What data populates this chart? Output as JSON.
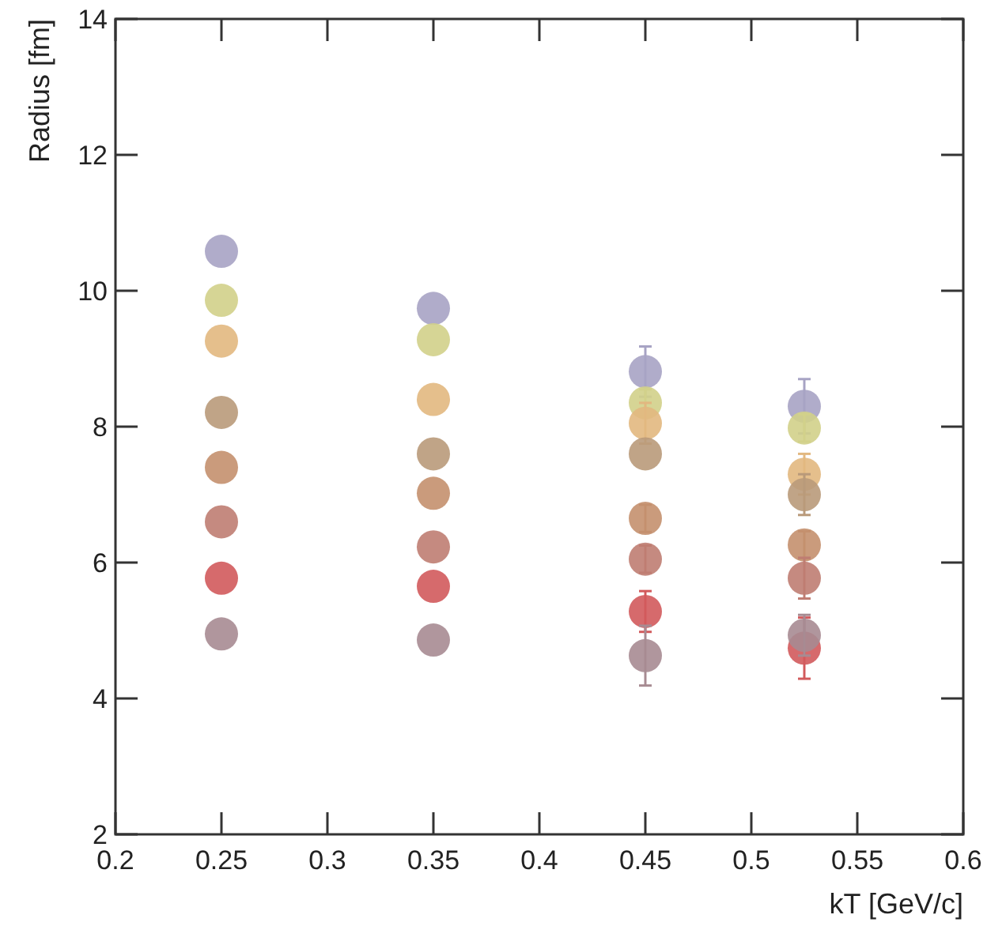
{
  "chart_data": {
    "type": "scatter",
    "xlabel": "kT [GeV/c]",
    "ylabel": "Radius [fm]",
    "x": [
      0.25,
      0.35,
      0.45,
      0.525
    ],
    "xlim": [
      0.2,
      0.6
    ],
    "xticks": [
      0.2,
      0.25,
      0.3,
      0.35,
      0.4,
      0.45,
      0.5,
      0.55,
      0.6
    ],
    "ylim": [
      2,
      14
    ],
    "yticks": [
      2,
      4,
      6,
      8,
      10,
      12,
      14
    ],
    "marker": "circle",
    "series": [
      {
        "color": "#a7a3c4",
        "values": [
          10.58,
          9.74,
          8.81,
          8.3
        ],
        "errors": [
          null,
          null,
          0.37,
          0.4
        ]
      },
      {
        "color": "#d2d08a",
        "values": [
          9.86,
          9.28,
          8.35,
          7.98
        ],
        "errors": [
          null,
          null,
          0.2,
          0.2
        ]
      },
      {
        "color": "#e2b880",
        "values": [
          9.26,
          8.4,
          8.05,
          7.3
        ],
        "errors": [
          null,
          null,
          0.3,
          0.3
        ]
      },
      {
        "color": "#b99a7a",
        "values": [
          8.21,
          7.6,
          7.6,
          7.0
        ],
        "errors": [
          null,
          null,
          null,
          0.3
        ]
      },
      {
        "color": "#c4906e",
        "values": [
          7.4,
          7.02,
          6.65,
          6.26
        ],
        "errors": [
          null,
          null,
          0.2,
          0.2
        ]
      },
      {
        "color": "#bf7d72",
        "values": [
          6.6,
          6.23,
          6.05,
          5.77
        ],
        "errors": [
          null,
          null,
          0.2,
          0.3
        ]
      },
      {
        "color": "#d25a5c",
        "values": [
          5.77,
          5.65,
          5.28,
          4.74
        ],
        "errors": [
          null,
          null,
          0.3,
          0.45
        ]
      },
      {
        "color": "#a78b92",
        "values": [
          4.95,
          4.86,
          4.63,
          4.93
        ],
        "errors": [
          null,
          null,
          0.44,
          0.3
        ]
      }
    ]
  }
}
